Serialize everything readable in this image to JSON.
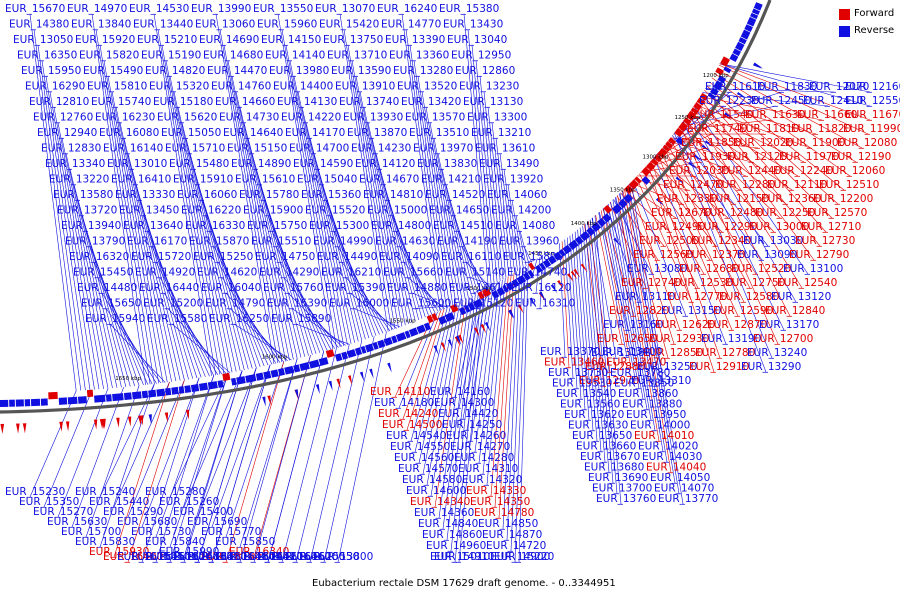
{
  "caption": "Eubacterium rectale DSM 17629 draft genome. - 0..3344951",
  "legend": [
    {
      "label": "Forward",
      "color": "#e00000"
    },
    {
      "label": "Reverse",
      "color": "#1010e0"
    }
  ],
  "colors": {
    "forward": "#e00000",
    "reverse": "#1010e0",
    "backbone": "#555555"
  },
  "ticks": [
    "1200 kbp",
    "1250 kbp",
    "1300 kbp",
    "1350 kbp",
    "1400 kbp",
    "1450 kbp",
    "1500 kbp",
    "1550 kbp",
    "1600 kbp",
    "1650 kbp"
  ],
  "labels": [
    {
      "t": "EUR_11610",
      "s": "r"
    },
    {
      "t": "EUR_11830",
      "s": "r"
    },
    {
      "t": "EUR_12070",
      "s": "r"
    },
    {
      "t": "EUR_12160",
      "s": "r"
    },
    {
      "t": "EUR_12230",
      "s": "r"
    },
    {
      "t": "EUR_12450",
      "s": "r"
    },
    {
      "t": "EUR_12410",
      "s": "r"
    },
    {
      "t": "EUR_12550",
      "s": "r"
    },
    {
      "t": "EUR_11540",
      "s": "f"
    },
    {
      "t": "EUR_11630",
      "s": "f"
    },
    {
      "t": "EUR_11660",
      "s": "f"
    },
    {
      "t": "EUR_11670",
      "s": "f"
    },
    {
      "t": "EUR_11740",
      "s": "f"
    },
    {
      "t": "EUR_11810",
      "s": "f"
    },
    {
      "t": "EUR_11820",
      "s": "f"
    },
    {
      "t": "EUR_11990",
      "s": "f"
    },
    {
      "t": "EUR_11850",
      "s": "f"
    },
    {
      "t": "EUR_12020",
      "s": "f"
    },
    {
      "t": "EUR_11900",
      "s": "f"
    },
    {
      "t": "EUR_12080",
      "s": "f"
    },
    {
      "t": "EUR_11930",
      "s": "f"
    },
    {
      "t": "EUR_12120",
      "s": "f"
    },
    {
      "t": "EUR_11970",
      "s": "f"
    },
    {
      "t": "EUR_12190",
      "s": "f"
    },
    {
      "t": "EUR_12030",
      "s": "f"
    },
    {
      "t": "EUR_12440",
      "s": "f"
    },
    {
      "t": "EUR_12240",
      "s": "f"
    },
    {
      "t": "EUR_12060",
      "s": "f"
    },
    {
      "t": "EUR_12470",
      "s": "f"
    },
    {
      "t": "EUR_12280",
      "s": "f"
    },
    {
      "t": "EUR_12110",
      "s": "f"
    },
    {
      "t": "EUR_12510",
      "s": "f"
    },
    {
      "t": "EUR_12330",
      "s": "f"
    },
    {
      "t": "EUR_12150",
      "s": "f"
    },
    {
      "t": "EUR_12360",
      "s": "f"
    },
    {
      "t": "EUR_12200",
      "s": "f"
    },
    {
      "t": "EUR_12670",
      "s": "f"
    },
    {
      "t": "EUR_12480",
      "s": "f"
    },
    {
      "t": "EUR_12250",
      "s": "f"
    },
    {
      "t": "EUR_12570",
      "s": "f"
    },
    {
      "t": "EUR_12490",
      "s": "f"
    },
    {
      "t": "EUR_12290",
      "s": "f"
    },
    {
      "t": "EUR_13000",
      "s": "f"
    },
    {
      "t": "EUR_12710",
      "s": "f"
    },
    {
      "t": "EUR_12500",
      "s": "f"
    },
    {
      "t": "EUR_12340",
      "s": "f"
    },
    {
      "t": "EUR_13030",
      "s": "r"
    },
    {
      "t": "EUR_12730",
      "s": "f"
    },
    {
      "t": "EUR_12560",
      "s": "f"
    },
    {
      "t": "EUR_12370",
      "s": "f"
    },
    {
      "t": "EUR_13090",
      "s": "r"
    },
    {
      "t": "EUR_12790",
      "s": "f"
    },
    {
      "t": "EUR_13080",
      "s": "r"
    },
    {
      "t": "EUR_12680",
      "s": "f"
    },
    {
      "t": "EUR_12520",
      "s": "f"
    },
    {
      "t": "EUR_13100",
      "s": "r"
    },
    {
      "t": "EUR_12740",
      "s": "f"
    },
    {
      "t": "EUR_12530",
      "s": "f"
    },
    {
      "t": "EUR_12750",
      "s": "f"
    },
    {
      "t": "EUR_12540",
      "s": "f"
    },
    {
      "t": "EUR_13110",
      "s": "r"
    },
    {
      "t": "EUR_12770",
      "s": "f"
    },
    {
      "t": "EUR_12580",
      "s": "f"
    },
    {
      "t": "EUR_13120",
      "s": "r"
    },
    {
      "t": "EUR_12820",
      "s": "f"
    },
    {
      "t": "EUR_13150",
      "s": "r"
    },
    {
      "t": "EUR_12590",
      "s": "f"
    },
    {
      "t": "EUR_12840",
      "s": "f"
    },
    {
      "t": "EUR_13160",
      "s": "r"
    },
    {
      "t": "EUR_12620",
      "s": "f"
    },
    {
      "t": "EUR_12870",
      "s": "f"
    },
    {
      "t": "EUR_13170",
      "s": "r"
    },
    {
      "t": "EUR_12650",
      "s": "f"
    },
    {
      "t": "EUR_12930",
      "s": "f"
    },
    {
      "t": "EUR_13190",
      "s": "r"
    },
    {
      "t": "EUR_12700",
      "s": "f"
    },
    {
      "t": "EUR_13180",
      "s": "r"
    },
    {
      "t": "EUR_12850",
      "s": "f"
    },
    {
      "t": "EUR_12780",
      "s": "f"
    },
    {
      "t": "EUR_13240",
      "s": "r"
    },
    {
      "t": "EUR_12880",
      "s": "f"
    },
    {
      "t": "EUR_13250",
      "s": "r"
    },
    {
      "t": "EUR_12910",
      "s": "f"
    },
    {
      "t": "EUR_13290",
      "s": "r"
    },
    {
      "t": "EUR_12970",
      "s": "f"
    },
    {
      "t": "EUR_13310",
      "s": "r"
    },
    {
      "t": "EUR_13370",
      "s": "r"
    },
    {
      "t": "EUR_13400",
      "s": "r"
    },
    {
      "t": "EUR_13460",
      "s": "f"
    },
    {
      "t": "EUR_13470",
      "s": "f"
    },
    {
      "t": "EUR_13730",
      "s": "r"
    },
    {
      "t": "EUR_13780",
      "s": "r"
    },
    {
      "t": "EUR_13530",
      "s": "r"
    },
    {
      "t": "EUR_13850",
      "s": "r"
    },
    {
      "t": "EUR_13540",
      "s": "r"
    },
    {
      "t": "EUR_13860",
      "s": "r"
    },
    {
      "t": "EUR_13560",
      "s": "r"
    },
    {
      "t": "EUR_13880",
      "s": "r"
    },
    {
      "t": "EUR_13620",
      "s": "r"
    },
    {
      "t": "EUR_13950",
      "s": "r"
    },
    {
      "t": "EUR_13630",
      "s": "r"
    },
    {
      "t": "EUR_14000",
      "s": "r"
    },
    {
      "t": "EUR_13650",
      "s": "r"
    },
    {
      "t": "EUR_14010",
      "s": "f"
    },
    {
      "t": "EUR_13660",
      "s": "r"
    },
    {
      "t": "EUR_14020",
      "s": "r"
    },
    {
      "t": "EUR_13670",
      "s": "r"
    },
    {
      "t": "EUR_14030",
      "s": "r"
    },
    {
      "t": "EUR_13680",
      "s": "r"
    },
    {
      "t": "EUR_14040",
      "s": "f"
    },
    {
      "t": "EUR_13690",
      "s": "r"
    },
    {
      "t": "EUR_14050",
      "s": "r"
    },
    {
      "t": "EUR_13700",
      "s": "r"
    },
    {
      "t": "EUR_14070",
      "s": "r"
    },
    {
      "t": "EUR_13760",
      "s": "r"
    },
    {
      "t": "EUR_13770",
      "s": "r"
    },
    {
      "t": "EUR_14110",
      "s": "f"
    },
    {
      "t": "EUR_14160",
      "s": "r"
    },
    {
      "t": "EUR_14180",
      "s": "r"
    },
    {
      "t": "EUR_14300",
      "s": "r"
    },
    {
      "t": "EUR_14240",
      "s": "f"
    },
    {
      "t": "EUR_14420",
      "s": "r"
    },
    {
      "t": "EUR_14500",
      "s": "f"
    },
    {
      "t": "EUR_14250",
      "s": "r"
    },
    {
      "t": "EUR_14540",
      "s": "r"
    },
    {
      "t": "EUR_14260",
      "s": "r"
    },
    {
      "t": "EUR_14550",
      "s": "r"
    },
    {
      "t": "EUR_14270",
      "s": "r"
    },
    {
      "t": "EUR_14560",
      "s": "r"
    },
    {
      "t": "EUR_14280",
      "s": "r"
    },
    {
      "t": "EUR_14570",
      "s": "r"
    },
    {
      "t": "EUR_14310",
      "s": "r"
    },
    {
      "t": "EUR_14580",
      "s": "r"
    },
    {
      "t": "EUR_14320",
      "s": "r"
    },
    {
      "t": "EUR_14600",
      "s": "r"
    },
    {
      "t": "EUR_14330",
      "s": "f"
    },
    {
      "t": "EUR_14340",
      "s": "f"
    },
    {
      "t": "EUR_14350",
      "s": "f"
    },
    {
      "t": "EUR_14360",
      "s": "r"
    },
    {
      "t": "EUR_14780",
      "s": "f"
    },
    {
      "t": "EUR_14840",
      "s": "r"
    },
    {
      "t": "EUR_14850",
      "s": "r"
    },
    {
      "t": "EUR_14860",
      "s": "r"
    },
    {
      "t": "EUR_14870",
      "s": "r"
    },
    {
      "t": "EUR_14960",
      "s": "r"
    },
    {
      "t": "EUR_14720",
      "s": "r"
    },
    {
      "t": "EUR_15010",
      "s": "r"
    },
    {
      "t": "EUR_14900",
      "s": "r"
    },
    {
      "t": "EUR_14910",
      "s": "r"
    },
    {
      "t": "EUR_15220",
      "s": "r"
    },
    {
      "t": "EUR_15230",
      "s": "r"
    },
    {
      "t": "EUR_15240",
      "s": "r"
    },
    {
      "t": "EUR_15280",
      "s": "r"
    },
    {
      "t": "EUR_15350",
      "s": "r"
    },
    {
      "t": "EUR_15440",
      "s": "r"
    },
    {
      "t": "EUR_15260",
      "s": "r"
    },
    {
      "t": "EUR_15270",
      "s": "r"
    },
    {
      "t": "EUR_15290",
      "s": "r"
    },
    {
      "t": "EUR_15400",
      "s": "r"
    },
    {
      "t": "EUR_15630",
      "s": "r"
    },
    {
      "t": "EUR_15680",
      "s": "r"
    },
    {
      "t": "EUR_15690",
      "s": "r"
    },
    {
      "t": "EUR_15700",
      "s": "r"
    },
    {
      "t": "EUR_15730",
      "s": "r"
    },
    {
      "t": "EUR_15770",
      "s": "r"
    },
    {
      "t": "EUR_15830",
      "s": "r"
    },
    {
      "t": "EUR_15840",
      "s": "r"
    },
    {
      "t": "EUR_15850",
      "s": "r"
    },
    {
      "t": "EUR_15930",
      "s": "f"
    },
    {
      "t": "EUR_15990",
      "s": "r"
    },
    {
      "t": "EUR_16340",
      "s": "f"
    },
    {
      "t": "EUR_16400",
      "s": "f"
    },
    {
      "t": "EUR_16100",
      "s": "r"
    },
    {
      "t": "EUR_16420",
      "s": "r"
    },
    {
      "t": "EUR_16150",
      "s": "r"
    },
    {
      "t": "EUR_16430",
      "s": "r"
    },
    {
      "t": "EUR_16160",
      "s": "r"
    },
    {
      "t": "EUR_16450",
      "s": "r"
    },
    {
      "t": "EUR_16180",
      "s": "f"
    },
    {
      "t": "EUR_16460",
      "s": "r"
    },
    {
      "t": "EUR_16190",
      "s": "r"
    },
    {
      "t": "EUR_16480",
      "s": "r"
    },
    {
      "t": "EUR_16200",
      "s": "r"
    },
    {
      "t": "EUR_16260",
      "s": "r"
    },
    {
      "t": "EUR_16090",
      "s": "r"
    },
    {
      "t": "EUR_15550",
      "s": "r"
    },
    {
      "t": "EUR_14830",
      "s": "r"
    },
    {
      "t": "EUR_14410",
      "s": "r"
    },
    {
      "t": "EUR_13800",
      "s": "r"
    },
    {
      "t": "EUR_13380",
      "s": "r"
    },
    {
      "t": "EUR_15670",
      "s": "r"
    },
    {
      "t": "EUR_14970",
      "s": "r"
    },
    {
      "t": "EUR_14530",
      "s": "r"
    },
    {
      "t": "EUR_13990",
      "s": "r"
    },
    {
      "t": "EUR_13550",
      "s": "r"
    },
    {
      "t": "EUR_13070",
      "s": "r"
    },
    {
      "t": "EUR_16240",
      "s": "r"
    },
    {
      "t": "EUR_15380",
      "s": "r"
    },
    {
      "t": "EUR_14380",
      "s": "r"
    },
    {
      "t": "EUR_13840",
      "s": "r"
    },
    {
      "t": "EUR_13440",
      "s": "r"
    },
    {
      "t": "EUR_13060",
      "s": "r"
    },
    {
      "t": "EUR_15960",
      "s": "r"
    },
    {
      "t": "EUR_15420",
      "s": "r"
    },
    {
      "t": "EUR_14770",
      "s": "r"
    },
    {
      "t": "EUR_13430",
      "s": "r"
    },
    {
      "t": "EUR_13050",
      "s": "r"
    },
    {
      "t": "EUR_15920",
      "s": "r"
    },
    {
      "t": "EUR_15210",
      "s": "r"
    },
    {
      "t": "EUR_14690",
      "s": "r"
    },
    {
      "t": "EUR_14150",
      "s": "r"
    },
    {
      "t": "EUR_13750",
      "s": "r"
    },
    {
      "t": "EUR_13390",
      "s": "r"
    },
    {
      "t": "EUR_13040",
      "s": "r"
    },
    {
      "t": "EUR_16350",
      "s": "r"
    },
    {
      "t": "EUR_15820",
      "s": "r"
    },
    {
      "t": "EUR_15190",
      "s": "r"
    },
    {
      "t": "EUR_14680",
      "s": "r"
    },
    {
      "t": "EUR_14140",
      "s": "r"
    },
    {
      "t": "EUR_13710",
      "s": "r"
    },
    {
      "t": "EUR_13360",
      "s": "r"
    },
    {
      "t": "EUR_12950",
      "s": "r"
    },
    {
      "t": "EUR_15950",
      "s": "r"
    },
    {
      "t": "EUR_15490",
      "s": "r"
    },
    {
      "t": "EUR_14820",
      "s": "r"
    },
    {
      "t": "EUR_14470",
      "s": "r"
    },
    {
      "t": "EUR_13980",
      "s": "r"
    },
    {
      "t": "EUR_13590",
      "s": "r"
    },
    {
      "t": "EUR_13280",
      "s": "r"
    },
    {
      "t": "EUR_12860",
      "s": "r"
    },
    {
      "t": "EUR_16290",
      "s": "r"
    },
    {
      "t": "EUR_15810",
      "s": "r"
    },
    {
      "t": "EUR_15320",
      "s": "r"
    },
    {
      "t": "EUR_14760",
      "s": "r"
    },
    {
      "t": "EUR_14400",
      "s": "r"
    },
    {
      "t": "EUR_13910",
      "s": "r"
    },
    {
      "t": "EUR_13520",
      "s": "r"
    },
    {
      "t": "EUR_13230",
      "s": "r"
    },
    {
      "t": "EUR_12810",
      "s": "r"
    },
    {
      "t": "EUR_15740",
      "s": "r"
    },
    {
      "t": "EUR_15180",
      "s": "r"
    },
    {
      "t": "EUR_14660",
      "s": "r"
    },
    {
      "t": "EUR_14130",
      "s": "r"
    },
    {
      "t": "EUR_13740",
      "s": "r"
    },
    {
      "t": "EUR_13420",
      "s": "r"
    },
    {
      "t": "EUR_13130",
      "s": "r"
    },
    {
      "t": "EUR_12760",
      "s": "r"
    },
    {
      "t": "EUR_16230",
      "s": "r"
    },
    {
      "t": "EUR_15620",
      "s": "r"
    },
    {
      "t": "EUR_14730",
      "s": "r"
    },
    {
      "t": "EUR_14220",
      "s": "r"
    },
    {
      "t": "EUR_13930",
      "s": "r"
    },
    {
      "t": "EUR_13570",
      "s": "r"
    },
    {
      "t": "EUR_13300",
      "s": "r"
    },
    {
      "t": "EUR_12940",
      "s": "r"
    },
    {
      "t": "EUR_16080",
      "s": "r"
    },
    {
      "t": "EUR_15050",
      "s": "r"
    },
    {
      "t": "EUR_14640",
      "s": "r"
    },
    {
      "t": "EUR_14170",
      "s": "r"
    },
    {
      "t": "EUR_13870",
      "s": "r"
    },
    {
      "t": "EUR_13510",
      "s": "r"
    },
    {
      "t": "EUR_13210",
      "s": "r"
    },
    {
      "t": "EUR_12830",
      "s": "r"
    },
    {
      "t": "EUR_16140",
      "s": "r"
    },
    {
      "t": "EUR_15710",
      "s": "r"
    },
    {
      "t": "EUR_15150",
      "s": "r"
    },
    {
      "t": "EUR_14700",
      "s": "r"
    },
    {
      "t": "EUR_14230",
      "s": "r"
    },
    {
      "t": "EUR_13970",
      "s": "r"
    },
    {
      "t": "EUR_13610",
      "s": "r"
    },
    {
      "t": "EUR_13340",
      "s": "r"
    },
    {
      "t": "EUR_13010",
      "s": "r"
    },
    {
      "t": "EUR_15480",
      "s": "r"
    },
    {
      "t": "EUR_14890",
      "s": "r"
    },
    {
      "t": "EUR_14590",
      "s": "r"
    },
    {
      "t": "EUR_14120",
      "s": "r"
    },
    {
      "t": "EUR_13830",
      "s": "r"
    },
    {
      "t": "EUR_13490",
      "s": "r"
    },
    {
      "t": "EUR_13220",
      "s": "r"
    },
    {
      "t": "EUR_16410",
      "s": "r"
    },
    {
      "t": "EUR_15910",
      "s": "r"
    },
    {
      "t": "EUR_15610",
      "s": "r"
    },
    {
      "t": "EUR_15040",
      "s": "r"
    },
    {
      "t": "EUR_14670",
      "s": "r"
    },
    {
      "t": "EUR_14210",
      "s": "r"
    },
    {
      "t": "EUR_13920",
      "s": "r"
    },
    {
      "t": "EUR_13580",
      "s": "r"
    },
    {
      "t": "EUR_13330",
      "s": "r"
    },
    {
      "t": "EUR_16060",
      "s": "r"
    },
    {
      "t": "EUR_15780",
      "s": "r"
    },
    {
      "t": "EUR_15360",
      "s": "r"
    },
    {
      "t": "EUR_14810",
      "s": "r"
    },
    {
      "t": "EUR_14520",
      "s": "r"
    },
    {
      "t": "EUR_14060",
      "s": "r"
    },
    {
      "t": "EUR_13720",
      "s": "r"
    },
    {
      "t": "EUR_13450",
      "s": "r"
    },
    {
      "t": "EUR_16220",
      "s": "r"
    },
    {
      "t": "EUR_15900",
      "s": "r"
    },
    {
      "t": "EUR_15520",
      "s": "r"
    },
    {
      "t": "EUR_15000",
      "s": "r"
    },
    {
      "t": "EUR_14650",
      "s": "r"
    },
    {
      "t": "EUR_14200",
      "s": "r"
    },
    {
      "t": "EUR_13940",
      "s": "r"
    },
    {
      "t": "EUR_13640",
      "s": "r"
    },
    {
      "t": "EUR_16330",
      "s": "r"
    },
    {
      "t": "EUR_15750",
      "s": "r"
    },
    {
      "t": "EUR_15300",
      "s": "r"
    },
    {
      "t": "EUR_14800",
      "s": "r"
    },
    {
      "t": "EUR_14510",
      "s": "r"
    },
    {
      "t": "EUR_14080",
      "s": "r"
    },
    {
      "t": "EUR_13790",
      "s": "r"
    },
    {
      "t": "EUR_16170",
      "s": "r"
    },
    {
      "t": "EUR_15870",
      "s": "r"
    },
    {
      "t": "EUR_15510",
      "s": "r"
    },
    {
      "t": "EUR_14990",
      "s": "r"
    },
    {
      "t": "EUR_14630",
      "s": "r"
    },
    {
      "t": "EUR_14190",
      "s": "r"
    },
    {
      "t": "EUR_13960",
      "s": "r"
    },
    {
      "t": "EUR_16320",
      "s": "r"
    },
    {
      "t": "EUR_15720",
      "s": "r"
    },
    {
      "t": "EUR_15250",
      "s": "r"
    },
    {
      "t": "EUR_14750",
      "s": "r"
    },
    {
      "t": "EUR_14490",
      "s": "r"
    },
    {
      "t": "EUR_14090",
      "s": "r"
    },
    {
      "t": "EUR_16110",
      "s": "r"
    },
    {
      "t": "EUR_15800",
      "s": "r"
    },
    {
      "t": "EUR_15450",
      "s": "r"
    },
    {
      "t": "EUR_14920",
      "s": "r"
    },
    {
      "t": "EUR_14620",
      "s": "r"
    },
    {
      "t": "EUR_14290",
      "s": "r"
    },
    {
      "t": "EUR_16210",
      "s": "r"
    },
    {
      "t": "EUR_15660",
      "s": "r"
    },
    {
      "t": "EUR_15140",
      "s": "r"
    },
    {
      "t": "EUR_14740",
      "s": "r"
    },
    {
      "t": "EUR_14480",
      "s": "r"
    },
    {
      "t": "EUR_16440",
      "s": "r"
    },
    {
      "t": "EUR_16040",
      "s": "r"
    },
    {
      "t": "EUR_15760",
      "s": "r"
    },
    {
      "t": "EUR_15390",
      "s": "r"
    },
    {
      "t": "EUR_14880",
      "s": "r"
    },
    {
      "t": "EUR_14610",
      "s": "r"
    },
    {
      "t": "EUR_16120",
      "s": "r"
    },
    {
      "t": "EUR_15650",
      "s": "r"
    },
    {
      "t": "EUR_15200",
      "s": "r"
    },
    {
      "t": "EUR_14790",
      "s": "r"
    },
    {
      "t": "EUR_16390",
      "s": "r"
    },
    {
      "t": "EUR_16000",
      "s": "r"
    },
    {
      "t": "EUR_15600",
      "s": "r"
    },
    {
      "t": "EUR_15120",
      "s": "r"
    },
    {
      "t": "EUR_16310",
      "s": "r"
    },
    {
      "t": "EUR_15940",
      "s": "r"
    },
    {
      "t": "EUR_15580",
      "s": "r"
    },
    {
      "t": "EUR_16250",
      "s": "r"
    },
    {
      "t": "EUR_15890",
      "s": "r"
    }
  ]
}
